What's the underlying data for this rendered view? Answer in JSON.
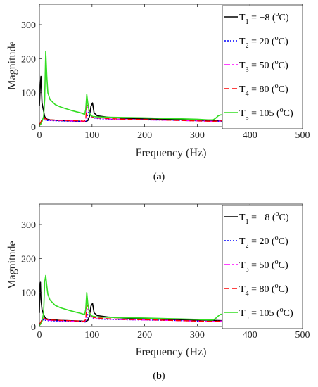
{
  "chart_data": [
    {
      "panel": "a",
      "caption": "(a)",
      "type": "line",
      "xlabel": "Frequency (Hz)",
      "ylabel": "Magnitude",
      "xlim": [
        0,
        500
      ],
      "ylim": [
        0,
        360
      ],
      "xticks": [
        "0",
        "100",
        "200",
        "300",
        "400",
        "500"
      ],
      "yticks": [
        "0",
        "100",
        "200",
        "300"
      ],
      "legend_position": "top-right",
      "grid": false,
      "series": [
        {
          "legend": {
            "var": "T",
            "sub": "1",
            "val": " = −8 (",
            "unit": "C)"
          },
          "color": "#000000",
          "dash": "",
          "x": [
            0,
            2,
            3,
            5,
            8,
            10,
            12,
            15,
            20,
            40,
            60,
            80,
            88,
            92,
            95,
            98,
            101,
            104,
            110,
            130,
            160,
            200,
            250,
            300,
            330,
            350,
            360,
            365,
            370,
            375,
            380,
            390,
            420,
            460,
            500
          ],
          "y": [
            60,
            130,
            148,
            70,
            45,
            30,
            25,
            22,
            20,
            18,
            17,
            16,
            15,
            18,
            30,
            60,
            70,
            40,
            32,
            28,
            25,
            23,
            21,
            19,
            18,
            17,
            18,
            22,
            26,
            30,
            27,
            22,
            19,
            17,
            15
          ]
        },
        {
          "legend": {
            "var": "T",
            "sub": "2",
            "val": " = 20 (",
            "unit": "C)"
          },
          "color": "#0000ff",
          "dash": "2,2",
          "x": [
            0,
            3,
            5,
            8,
            10,
            12,
            15,
            20,
            40,
            60,
            80,
            88,
            90,
            92,
            95,
            98,
            102,
            110,
            130,
            160,
            200,
            250,
            300,
            330,
            350,
            360,
            363,
            366,
            370,
            380,
            390,
            420,
            460,
            500
          ],
          "y": [
            5,
            10,
            20,
            22,
            20,
            19,
            18,
            18,
            17,
            16,
            15,
            14,
            18,
            40,
            45,
            30,
            26,
            24,
            22,
            21,
            20,
            19,
            17,
            16,
            16,
            18,
            22,
            27,
            30,
            28,
            22,
            19,
            17,
            15
          ]
        },
        {
          "legend": {
            "var": "T",
            "sub": "3",
            "val": " = 50 (",
            "unit": "C)"
          },
          "color": "#ff00ff",
          "dash": "8,3,2,3",
          "x": [
            0,
            3,
            5,
            8,
            10,
            12,
            15,
            20,
            40,
            60,
            80,
            86,
            88,
            90,
            92,
            95,
            98,
            102,
            110,
            130,
            160,
            200,
            250,
            300,
            330,
            345,
            355,
            360,
            365,
            370,
            380,
            390,
            420,
            460,
            500
          ],
          "y": [
            5,
            12,
            22,
            24,
            22,
            21,
            20,
            19,
            18,
            17,
            16,
            15,
            20,
            50,
            58,
            40,
            30,
            27,
            25,
            23,
            21,
            20,
            19,
            17,
            16,
            17,
            19,
            22,
            28,
            30,
            27,
            22,
            19,
            17,
            15
          ]
        },
        {
          "legend": {
            "var": "T",
            "sub": "4",
            "val": " = 80 (",
            "unit": "C)"
          },
          "color": "#ff0000",
          "dash": "7,4",
          "x": [
            0,
            3,
            5,
            8,
            10,
            12,
            15,
            20,
            40,
            60,
            80,
            85,
            88,
            90,
            92,
            95,
            98,
            102,
            110,
            130,
            160,
            200,
            250,
            300,
            330,
            345,
            350,
            355,
            360,
            365,
            370,
            380,
            390,
            420,
            460,
            500
          ],
          "y": [
            5,
            14,
            24,
            26,
            24,
            23,
            21,
            20,
            19,
            18,
            17,
            16,
            22,
            60,
            65,
            45,
            32,
            28,
            26,
            24,
            22,
            21,
            19,
            17,
            16,
            17,
            20,
            26,
            31,
            32,
            30,
            26,
            22,
            19,
            17,
            15
          ]
        },
        {
          "legend": {
            "var": "T",
            "sub": "5",
            "val": " = 105 (",
            "unit": "C)"
          },
          "color": "#33dd22",
          "dash": "",
          "x": [
            0,
            3,
            5,
            8,
            10,
            12,
            14,
            16,
            20,
            30,
            40,
            60,
            80,
            86,
            88,
            90,
            92,
            95,
            98,
            102,
            110,
            130,
            160,
            200,
            250,
            300,
            320,
            330,
            335,
            340,
            345,
            350,
            360,
            380,
            420,
            460,
            500
          ],
          "y": [
            3,
            8,
            15,
            30,
            80,
            222,
            150,
            100,
            80,
            65,
            58,
            48,
            40,
            36,
            50,
            95,
            70,
            40,
            32,
            30,
            29,
            28,
            27,
            26,
            24,
            22,
            20,
            20,
            25,
            32,
            35,
            33,
            30,
            26,
            21,
            18,
            16
          ]
        }
      ]
    },
    {
      "panel": "b",
      "caption": "(b)",
      "type": "line",
      "xlabel": "Frequency (Hz)",
      "ylabel": "Magnitude",
      "xlim": [
        0,
        500
      ],
      "ylim": [
        0,
        360
      ],
      "xticks": [
        "0",
        "100",
        "200",
        "300",
        "400",
        "500"
      ],
      "yticks": [
        "0",
        "100",
        "200",
        "300"
      ],
      "legend_position": "top-right",
      "grid": false,
      "series": [
        {
          "legend": {
            "var": "T",
            "sub": "1",
            "val": " = −8 (",
            "unit": "C)"
          },
          "color": "#000000",
          "dash": "",
          "x": [
            0,
            1,
            2,
            3,
            5,
            8,
            10,
            12,
            15,
            20,
            40,
            60,
            80,
            88,
            92,
            95,
            98,
            101,
            104,
            110,
            130,
            160,
            200,
            250,
            300,
            330,
            350,
            360,
            365,
            370,
            375,
            380,
            390,
            420,
            460,
            500
          ],
          "y": [
            40,
            120,
            130,
            80,
            50,
            35,
            28,
            24,
            22,
            20,
            18,
            17,
            16,
            15,
            18,
            30,
            60,
            68,
            40,
            32,
            28,
            25,
            23,
            21,
            19,
            18,
            17,
            18,
            22,
            26,
            30,
            27,
            22,
            19,
            17,
            15
          ]
        },
        {
          "legend": {
            "var": "T",
            "sub": "2",
            "val": " = 20 (",
            "unit": "C)"
          },
          "color": "#0000ff",
          "dash": "2,2",
          "x": [
            0,
            3,
            5,
            8,
            10,
            12,
            15,
            20,
            40,
            60,
            80,
            88,
            90,
            92,
            95,
            98,
            102,
            110,
            130,
            160,
            200,
            250,
            300,
            330,
            350,
            360,
            363,
            366,
            370,
            380,
            390,
            420,
            460,
            500
          ],
          "y": [
            5,
            10,
            18,
            20,
            19,
            18,
            17,
            17,
            16,
            15,
            14,
            13,
            18,
            38,
            42,
            28,
            24,
            22,
            21,
            20,
            19,
            18,
            16,
            15,
            15,
            17,
            21,
            26,
            29,
            27,
            21,
            18,
            16,
            14
          ]
        },
        {
          "legend": {
            "var": "T",
            "sub": "3",
            "val": " = 50 (",
            "unit": "C)"
          },
          "color": "#ff00ff",
          "dash": "8,3,2,3",
          "x": [
            0,
            3,
            5,
            8,
            10,
            12,
            15,
            20,
            40,
            60,
            80,
            86,
            88,
            90,
            92,
            95,
            98,
            102,
            110,
            130,
            160,
            200,
            250,
            300,
            330,
            345,
            355,
            360,
            365,
            370,
            380,
            390,
            420,
            460,
            500
          ],
          "y": [
            5,
            12,
            20,
            22,
            21,
            20,
            19,
            18,
            17,
            16,
            15,
            14,
            19,
            48,
            55,
            38,
            28,
            25,
            23,
            22,
            20,
            19,
            18,
            16,
            15,
            16,
            18,
            21,
            27,
            29,
            26,
            21,
            18,
            16,
            14
          ]
        },
        {
          "legend": {
            "var": "T",
            "sub": "4",
            "val": " = 80 (",
            "unit": "C)"
          },
          "color": "#ff0000",
          "dash": "7,4",
          "x": [
            0,
            3,
            5,
            8,
            10,
            12,
            15,
            20,
            40,
            60,
            80,
            85,
            88,
            90,
            92,
            95,
            98,
            102,
            110,
            130,
            160,
            200,
            250,
            300,
            330,
            345,
            350,
            355,
            360,
            365,
            370,
            380,
            390,
            420,
            460,
            500
          ],
          "y": [
            5,
            14,
            22,
            24,
            23,
            22,
            20,
            19,
            18,
            17,
            16,
            15,
            21,
            58,
            62,
            43,
            30,
            27,
            25,
            23,
            21,
            20,
            18,
            16,
            15,
            16,
            19,
            25,
            30,
            31,
            29,
            25,
            21,
            18,
            16,
            14
          ]
        },
        {
          "legend": {
            "var": "T",
            "sub": "5",
            "val": " = 105 (",
            "unit": "C)"
          },
          "color": "#33dd22",
          "dash": "",
          "x": [
            0,
            3,
            5,
            8,
            10,
            12,
            14,
            16,
            20,
            30,
            40,
            60,
            80,
            86,
            88,
            90,
            92,
            95,
            98,
            102,
            110,
            130,
            160,
            200,
            250,
            300,
            320,
            330,
            335,
            340,
            345,
            350,
            360,
            380,
            420,
            460,
            500
          ],
          "y": [
            3,
            8,
            15,
            40,
            130,
            150,
            120,
            95,
            78,
            62,
            55,
            46,
            38,
            35,
            50,
            100,
            68,
            40,
            32,
            30,
            28,
            27,
            26,
            25,
            23,
            21,
            19,
            19,
            24,
            31,
            36,
            34,
            30,
            26,
            21,
            18,
            16
          ]
        }
      ]
    }
  ]
}
